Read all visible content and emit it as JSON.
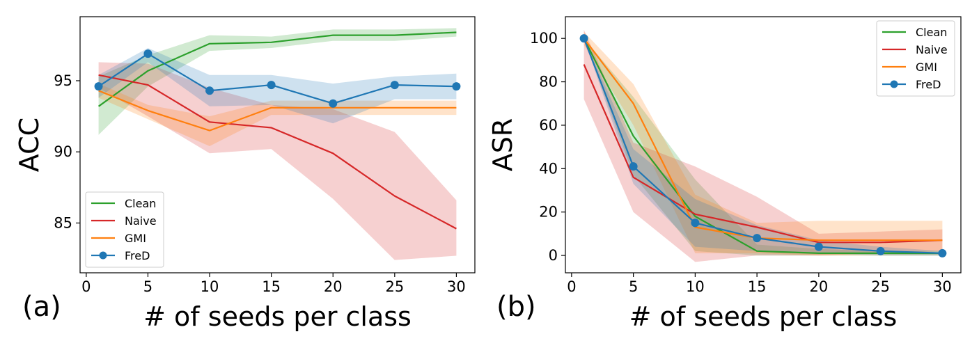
{
  "figure": {
    "panel_a_label": "(a)",
    "panel_b_label": "(b)"
  },
  "chart_data": [
    {
      "type": "line",
      "panel": "(a)",
      "xlabel": "# of seeds per class",
      "ylabel": "ACC",
      "x": [
        1,
        5,
        10,
        15,
        20,
        25,
        30
      ],
      "xticks": [
        0,
        5,
        10,
        15,
        20,
        25,
        30
      ],
      "yticks": [
        85,
        90,
        95
      ],
      "xlim": [
        -0.5,
        31.5
      ],
      "ylim": [
        81.5,
        99.5
      ],
      "grid": false,
      "legend_position": "bottom-left",
      "series": [
        {
          "name": "Clean",
          "color": "#2ca02c",
          "marker": "none",
          "values": [
            93.2,
            95.7,
            97.6,
            97.7,
            98.2,
            98.2,
            98.4
          ],
          "band_low": [
            91.2,
            94.6,
            97.1,
            97.3,
            97.8,
            97.8,
            98.1
          ],
          "band_high": [
            95.3,
            96.8,
            98.2,
            98.1,
            98.6,
            98.6,
            98.7
          ]
        },
        {
          "name": "Naive",
          "color": "#d62728",
          "marker": "none",
          "values": [
            95.4,
            94.7,
            92.1,
            91.7,
            89.9,
            86.9,
            84.6
          ],
          "band_low": [
            94.5,
            92.5,
            89.9,
            90.2,
            86.7,
            82.4,
            82.7
          ],
          "band_high": [
            96.3,
            96.2,
            94.5,
            93.3,
            93.0,
            91.4,
            86.6
          ]
        },
        {
          "name": "GMI",
          "color": "#ff7f0e",
          "marker": "none",
          "values": [
            94.3,
            92.9,
            91.5,
            93.1,
            93.1,
            93.1,
            93.1
          ],
          "band_low": [
            93.8,
            92.3,
            90.4,
            92.6,
            92.6,
            92.6,
            92.6
          ],
          "band_high": [
            94.8,
            93.3,
            92.5,
            93.6,
            93.6,
            93.6,
            93.6
          ]
        },
        {
          "name": "FreD",
          "color": "#1f77b4",
          "marker": "circle",
          "values": [
            94.6,
            96.9,
            94.3,
            94.7,
            93.4,
            94.7,
            94.6
          ],
          "band_low": [
            93.8,
            96.3,
            93.2,
            93.3,
            92.0,
            93.7,
            93.7
          ],
          "band_high": [
            95.4,
            97.3,
            95.4,
            95.4,
            94.8,
            95.3,
            95.5
          ]
        }
      ]
    },
    {
      "type": "line",
      "panel": "(b)",
      "xlabel": "# of seeds per class",
      "ylabel": "ASR",
      "x": [
        1,
        5,
        10,
        15,
        20,
        25,
        30
      ],
      "xticks": [
        0,
        5,
        10,
        15,
        20,
        25,
        30
      ],
      "yticks": [
        0,
        20,
        40,
        60,
        80,
        100
      ],
      "xlim": [
        -0.5,
        31.5
      ],
      "ylim": [
        -8,
        110
      ],
      "grid": false,
      "legend_position": "top-right",
      "series": [
        {
          "name": "Clean",
          "color": "#2ca02c",
          "marker": "none",
          "values": [
            100,
            55,
            18,
            2,
            1,
            1,
            1
          ],
          "band_low": [
            100,
            37,
            2,
            0,
            0,
            0,
            0
          ],
          "band_high": [
            100,
            73,
            35,
            5,
            3,
            2,
            2
          ]
        },
        {
          "name": "Naive",
          "color": "#d62728",
          "marker": "none",
          "values": [
            88,
            36,
            19,
            13,
            6,
            6,
            7
          ],
          "band_low": [
            72,
            20,
            -3,
            0,
            0,
            1,
            2
          ],
          "band_high": [
            104,
            52,
            41,
            27,
            10,
            11,
            12
          ]
        },
        {
          "name": "GMI",
          "color": "#ff7f0e",
          "marker": "none",
          "values": [
            100,
            70,
            13,
            8,
            7,
            7,
            7
          ],
          "band_low": [
            97,
            60,
            1,
            1,
            0,
            0,
            0
          ],
          "band_high": [
            103,
            79,
            28,
            15,
            16,
            16,
            16
          ]
        },
        {
          "name": "FreD",
          "color": "#1f77b4",
          "marker": "circle",
          "values": [
            100,
            41,
            15,
            8,
            4,
            2,
            1
          ],
          "band_low": [
            100,
            33,
            4,
            2,
            1,
            0,
            0
          ],
          "band_high": [
            100,
            49,
            26,
            14,
            7,
            4,
            2
          ]
        }
      ]
    }
  ]
}
